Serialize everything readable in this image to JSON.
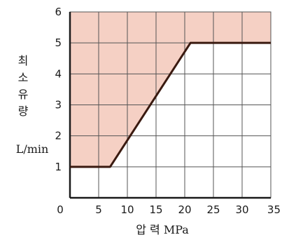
{
  "chart_data": {
    "type": "area",
    "title": "",
    "xlabel": "압 력 MPa",
    "ylabel_chars": [
      "최",
      "소",
      "유",
      "량"
    ],
    "yunit": "L/min",
    "xlim": [
      0,
      35
    ],
    "ylim": [
      0,
      6
    ],
    "x_ticks": [
      "0",
      "5",
      "10",
      "15",
      "20",
      "25",
      "30",
      "35"
    ],
    "y_ticks": [
      "1",
      "2",
      "3",
      "4",
      "5",
      "6"
    ],
    "grid": true,
    "boundary": {
      "x": [
        0,
        7,
        21,
        35
      ],
      "y": [
        1,
        1,
        5,
        5
      ]
    },
    "colors": {
      "shaded": "#f5d0c4",
      "line": "#3a1a10",
      "grid": "#555555"
    }
  }
}
